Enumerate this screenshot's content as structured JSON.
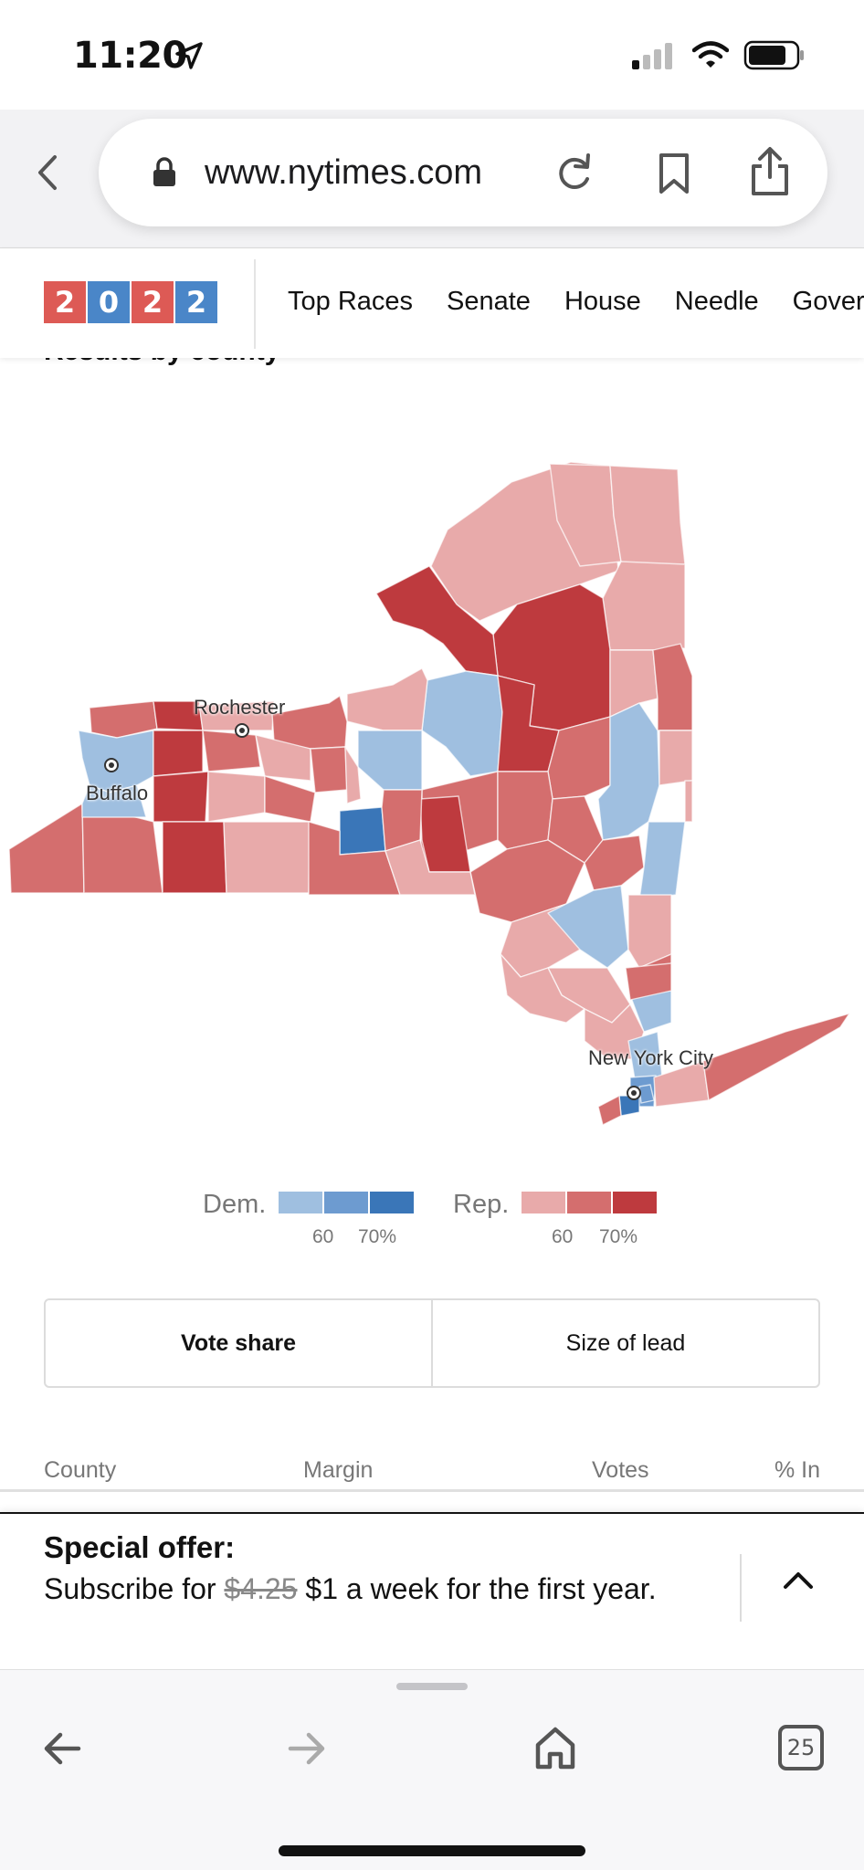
{
  "status_bar": {
    "time": "11:20",
    "icons": [
      "location-arrow-icon",
      "cellular-signal-icon",
      "wifi-icon",
      "battery-icon"
    ]
  },
  "browser": {
    "url": "www.nytimes.com",
    "icons": [
      "back-chevron-icon",
      "lock-icon",
      "reload-icon",
      "bookmark-icon",
      "share-icon"
    ]
  },
  "site_nav": {
    "logo_digits": [
      "2",
      "0",
      "2",
      "2"
    ],
    "items": [
      "Top Races",
      "Senate",
      "House",
      "Needle",
      "Gover"
    ]
  },
  "section": {
    "heading": "Results by county"
  },
  "map": {
    "labels": {
      "rochester": "Rochester",
      "buffalo": "Buffalo",
      "nyc": "New York City"
    },
    "colors": {
      "dem_light": "#9fbfe0",
      "dem_mid": "#6d9bd0",
      "dem_dark": "#3a76b8",
      "rep_light": "#e8aaaa",
      "rep_mid": "#d46e6e",
      "rep_dark": "#be3a3e"
    }
  },
  "legend": {
    "dem_label": "Dem.",
    "rep_label": "Rep.",
    "ticks": [
      "60",
      "70%"
    ]
  },
  "toggle": {
    "vote_share": "Vote share",
    "size_of_lead": "Size of lead",
    "active": "Vote share"
  },
  "table": {
    "columns": [
      "County",
      "Margin",
      "Votes",
      "% In"
    ]
  },
  "offer": {
    "title": "Special offer:",
    "body_prefix": "Subscribe for ",
    "old_price": "$4.25",
    "body_suffix": " $1 a week for the first year."
  },
  "toolbar": {
    "tab_count": "25",
    "icons": [
      "back-arrow-icon",
      "forward-arrow-icon",
      "home-icon",
      "tabs-icon"
    ]
  }
}
